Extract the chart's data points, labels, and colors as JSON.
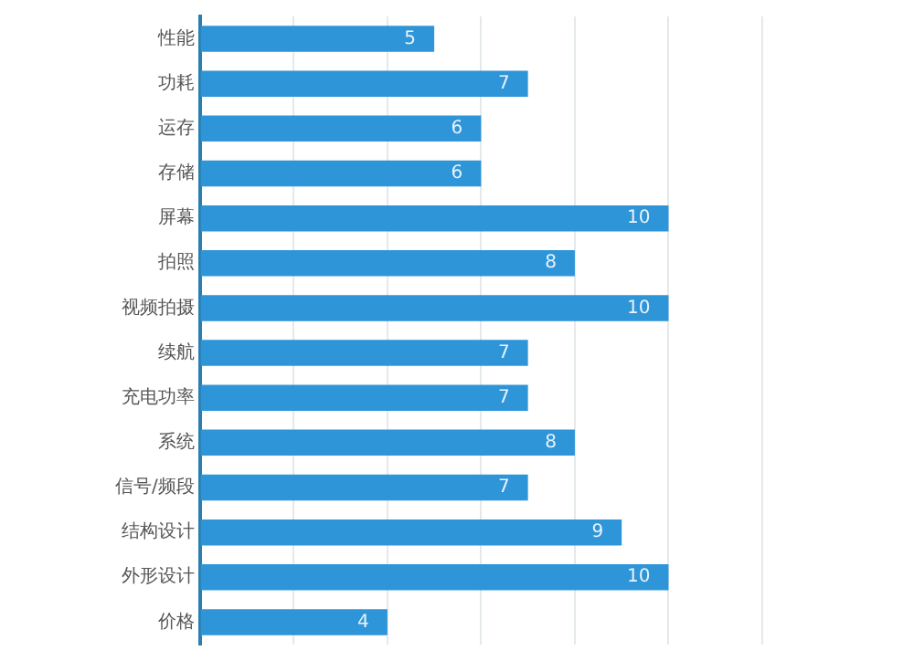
{
  "chart_data": {
    "type": "bar",
    "orientation": "horizontal",
    "categories": [
      "性能",
      "功耗",
      "运存",
      "存储",
      "屏幕",
      "拍照",
      "视频拍摄",
      "续航",
      "充电功率",
      "系统",
      "信号/频段",
      "结构设计",
      "外形设计",
      "价格"
    ],
    "values": [
      5,
      7,
      6,
      6,
      10,
      8,
      10,
      7,
      7,
      8,
      7,
      9,
      10,
      4
    ],
    "color": "#2e95d8",
    "xlim": [
      0,
      12
    ],
    "xticks": [
      {
        "value": 0,
        "label": null
      },
      {
        "value": 2,
        "label": null
      },
      {
        "value": 4,
        "label": null
      },
      {
        "value": 6,
        "label": null
      },
      {
        "value": 8,
        "label": null
      },
      {
        "value": 10,
        "label": null
      },
      {
        "value": 12,
        "label": null
      }
    ],
    "grid": "x",
    "tick_labels": "y",
    "data_labels": true,
    "legend": false
  }
}
